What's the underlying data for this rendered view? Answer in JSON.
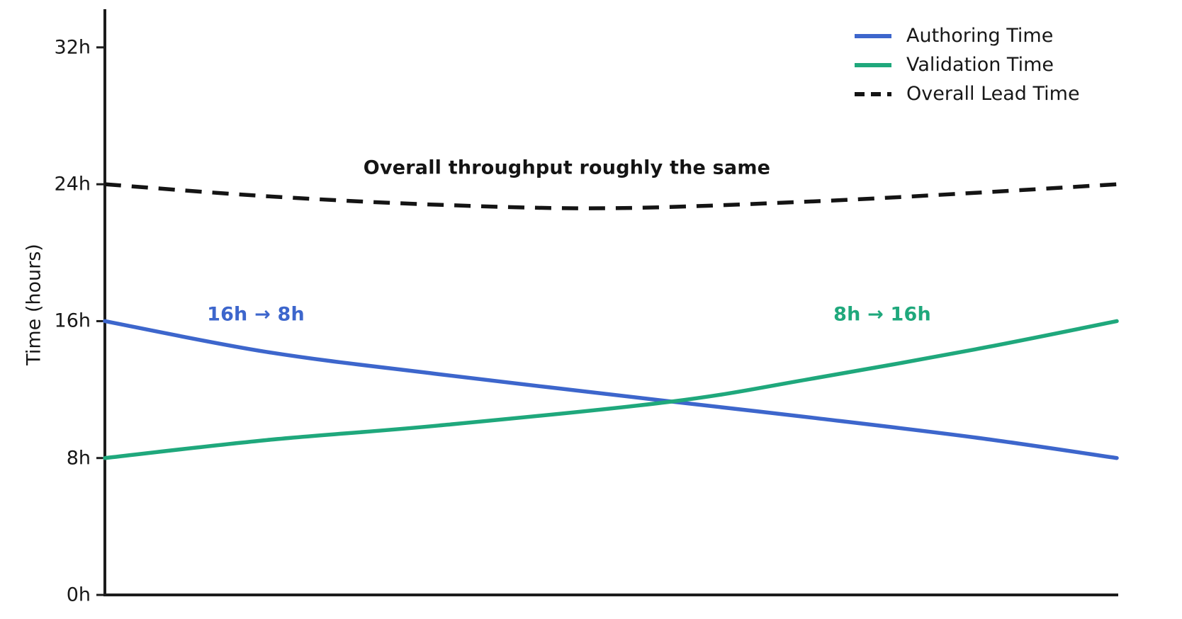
{
  "figure": {
    "background": "#ffffff",
    "axis_color": "#1c1c1c",
    "text_color": "#171717"
  },
  "chart_data": {
    "type": "line",
    "title": "",
    "xlabel": "",
    "ylabel": "Time (hours)",
    "ylim": [
      0,
      34
    ],
    "x_range": [
      0,
      1
    ],
    "x_tick_labels": [],
    "grid": false,
    "legend_position": "upper right",
    "yticks": [
      {
        "value": 0,
        "label": "0h"
      },
      {
        "value": 8,
        "label": "8h"
      },
      {
        "value": 16,
        "label": "16h"
      },
      {
        "value": 24,
        "label": "24h"
      },
      {
        "value": 32,
        "label": "32h"
      }
    ],
    "series": [
      {
        "name": "Authoring Time",
        "color": "#3d66cc",
        "style": "solid",
        "trend": "falls from 16h to 8h",
        "points": [
          [
            0,
            16
          ],
          [
            0.16,
            14.2
          ],
          [
            0.33,
            12.9
          ],
          [
            0.56,
            11.3
          ],
          [
            0.7,
            10.35
          ],
          [
            0.86,
            9.2
          ],
          [
            1,
            8
          ]
        ]
      },
      {
        "name": "Validation Time",
        "color": "#1fa87c",
        "style": "solid",
        "trend": "rises from 8h to 16h",
        "points": [
          [
            0,
            8
          ],
          [
            0.16,
            9.05
          ],
          [
            0.33,
            9.9
          ],
          [
            0.56,
            11.3
          ],
          [
            0.7,
            12.65
          ],
          [
            0.86,
            14.35
          ],
          [
            1,
            16
          ]
        ]
      },
      {
        "name": "Overall Lead Time",
        "color": "#141414",
        "style": "dashed",
        "trend": "roughly constant near 24h with slight mid dip to ~22.6h",
        "points": [
          [
            0,
            24
          ],
          [
            0.16,
            23.3
          ],
          [
            0.33,
            22.8
          ],
          [
            0.5,
            22.6
          ],
          [
            0.7,
            23.0
          ],
          [
            0.86,
            23.5
          ],
          [
            1,
            24
          ]
        ]
      }
    ],
    "annotations": {
      "overall": {
        "text": "Overall throughput roughly the same",
        "color": "#141414"
      },
      "authoring": {
        "text": "16h → 8h",
        "color": "#3d66cc"
      },
      "validation": {
        "text": "8h → 16h",
        "color": "#1fa87c"
      }
    }
  }
}
